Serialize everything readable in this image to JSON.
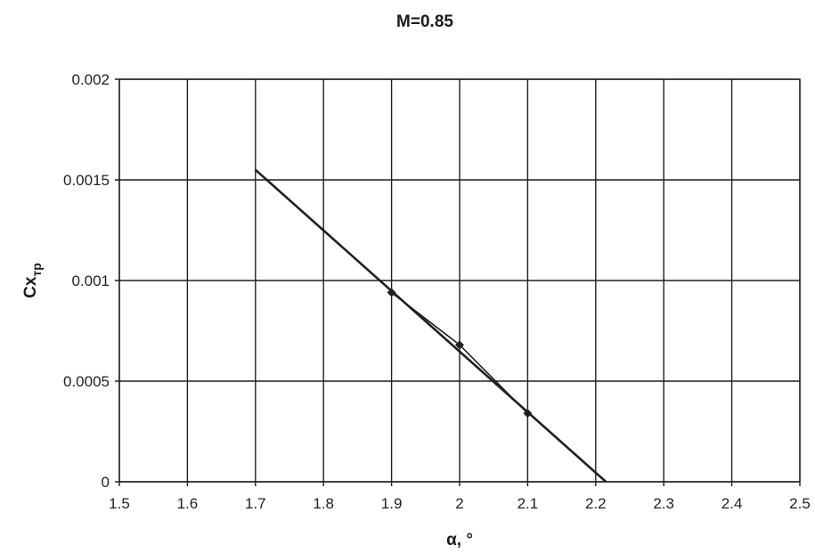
{
  "chart_data": {
    "type": "scatter",
    "title": "M=0.85",
    "xlabel": "α, °",
    "ylabel": "Cx",
    "ylabel_subscript": "тр",
    "xlim": [
      1.5,
      2.5
    ],
    "ylim": [
      0,
      0.002
    ],
    "x_ticks": [
      "1.5",
      "1.6",
      "1.7",
      "1.8",
      "1.9",
      "2",
      "2.1",
      "2.2",
      "2.3",
      "2.4",
      "2.5"
    ],
    "y_ticks": [
      "0",
      "0.0005",
      "0.001",
      "0.0015",
      "0.002"
    ],
    "grid": true,
    "legend": "none",
    "series": [
      {
        "points": [
          {
            "x": 1.9,
            "y": 0.00094
          },
          {
            "x": 2.0,
            "y": 0.00068
          },
          {
            "x": 2.1,
            "y": 0.00034
          }
        ],
        "marker": "diamond",
        "color": "#1f1f1f"
      }
    ],
    "trendline": {
      "from": {
        "x": 1.7,
        "y": 0.00155
      },
      "to": {
        "x": 2.215,
        "y": 0.0
      },
      "color": "#1f1f1f"
    }
  }
}
